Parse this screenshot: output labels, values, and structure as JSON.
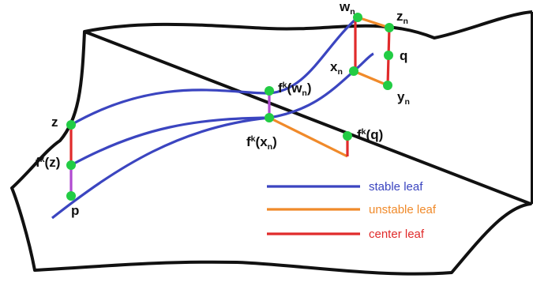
{
  "colors": {
    "stable": "#3b45c0",
    "unstable": "#f08a2a",
    "center": "#e02b2b",
    "sub_center": "#b04ad0",
    "point": "#22cc44",
    "outline": "#111111"
  },
  "points": {
    "wn": {
      "base": "w",
      "sub": "n"
    },
    "zn": {
      "base": "z",
      "sub": "n"
    },
    "q": {
      "base": "q"
    },
    "xn": {
      "base": "x",
      "sub": "n"
    },
    "yn": {
      "base": "y",
      "sub": "n"
    },
    "fk_wn": {
      "pre": "f",
      "sup": "k",
      "open": "(",
      "base": "w",
      "sub": "n",
      "close": ")"
    },
    "fk_xn": {
      "pre": "f",
      "sup": "k",
      "open": "(",
      "base": "x",
      "sub": "n",
      "close": ")"
    },
    "fk_q": {
      "pre": "f",
      "sup": "k",
      "open": "(",
      "base": "q",
      "close": ")"
    },
    "z": {
      "base": "z"
    },
    "fk_z": {
      "pre": "f",
      "sup": "k",
      "open": "(",
      "base": "z",
      "close": ")"
    },
    "p": {
      "base": "p"
    }
  },
  "legend": {
    "stable": "stable leaf",
    "unstable": "unstable leaf",
    "center": "center leaf"
  }
}
